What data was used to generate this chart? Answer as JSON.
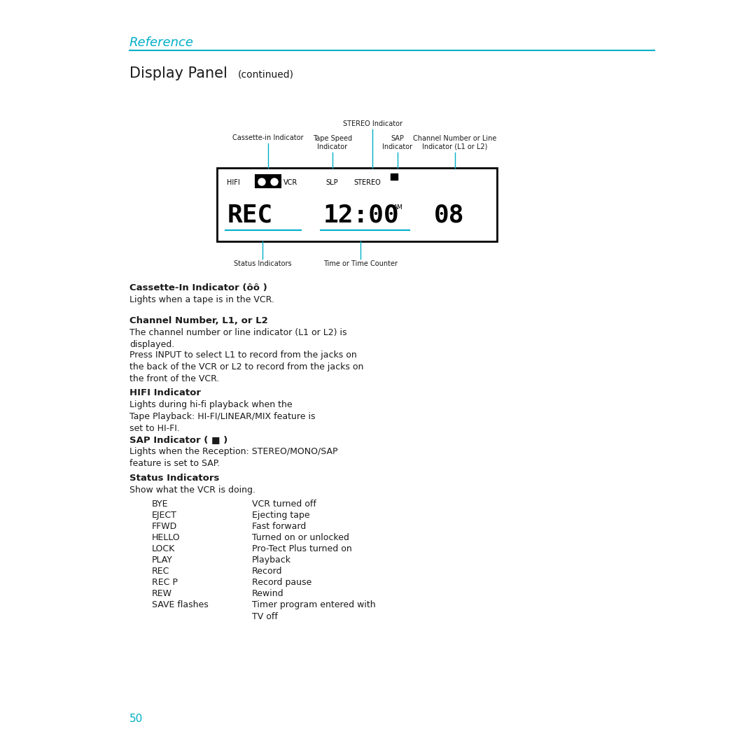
{
  "title_ref": "Reference",
  "title_ref_color": "#00b0c8",
  "title_display": "Display Panel",
  "title_display_continued": "(continued)",
  "page_number": "50",
  "page_number_color": "#00b0c8",
  "bg_color": "#ffffff",
  "text_color": "#1a1a1a",
  "line_color": "#00b0c8",
  "cassette_in_header": "Cassette-In Indicator (ôô )",
  "cassette_in_desc": "Lights when a tape is in the VCR.",
  "channel_number_header": "Channel Number, L1, or L2",
  "channel_number_desc1": "The channel number or line indicator (L1 or L2) is\ndisplayed.",
  "channel_number_desc2": "Press INPUT to select L1 to record from the jacks on\nthe back of the VCR or L2 to record from the jacks on\nthe front of the VCR.",
  "hifi_header": "HIFI Indicator",
  "hifi_desc": "Lights during hi-fi playback when the\nTape Playback: HI-FI/LINEAR/MIX feature is\nset to HI-FI.",
  "sap_header": "SAP Indicator ( ■ )",
  "sap_desc": "Lights when the Reception: STEREO/MONO/SAP\nfeature is set to SAP.",
  "status_header": "Status Indicators",
  "status_desc": "Show what the VCR is doing.",
  "status_table": [
    [
      "BYE",
      "VCR turned off"
    ],
    [
      "EJECT",
      "Ejecting tape"
    ],
    [
      "FFWD",
      "Fast forward"
    ],
    [
      "HELLO",
      "Turned on or unlocked"
    ],
    [
      "LOCK",
      "Pro-Tect Plus turned on"
    ],
    [
      "PLAY",
      "Playback"
    ],
    [
      "REC",
      "Record"
    ],
    [
      "REC P",
      "Record pause"
    ],
    [
      "REW",
      "Rewind"
    ],
    [
      "SAVE flashes",
      "Timer program entered with\nTV off"
    ]
  ]
}
